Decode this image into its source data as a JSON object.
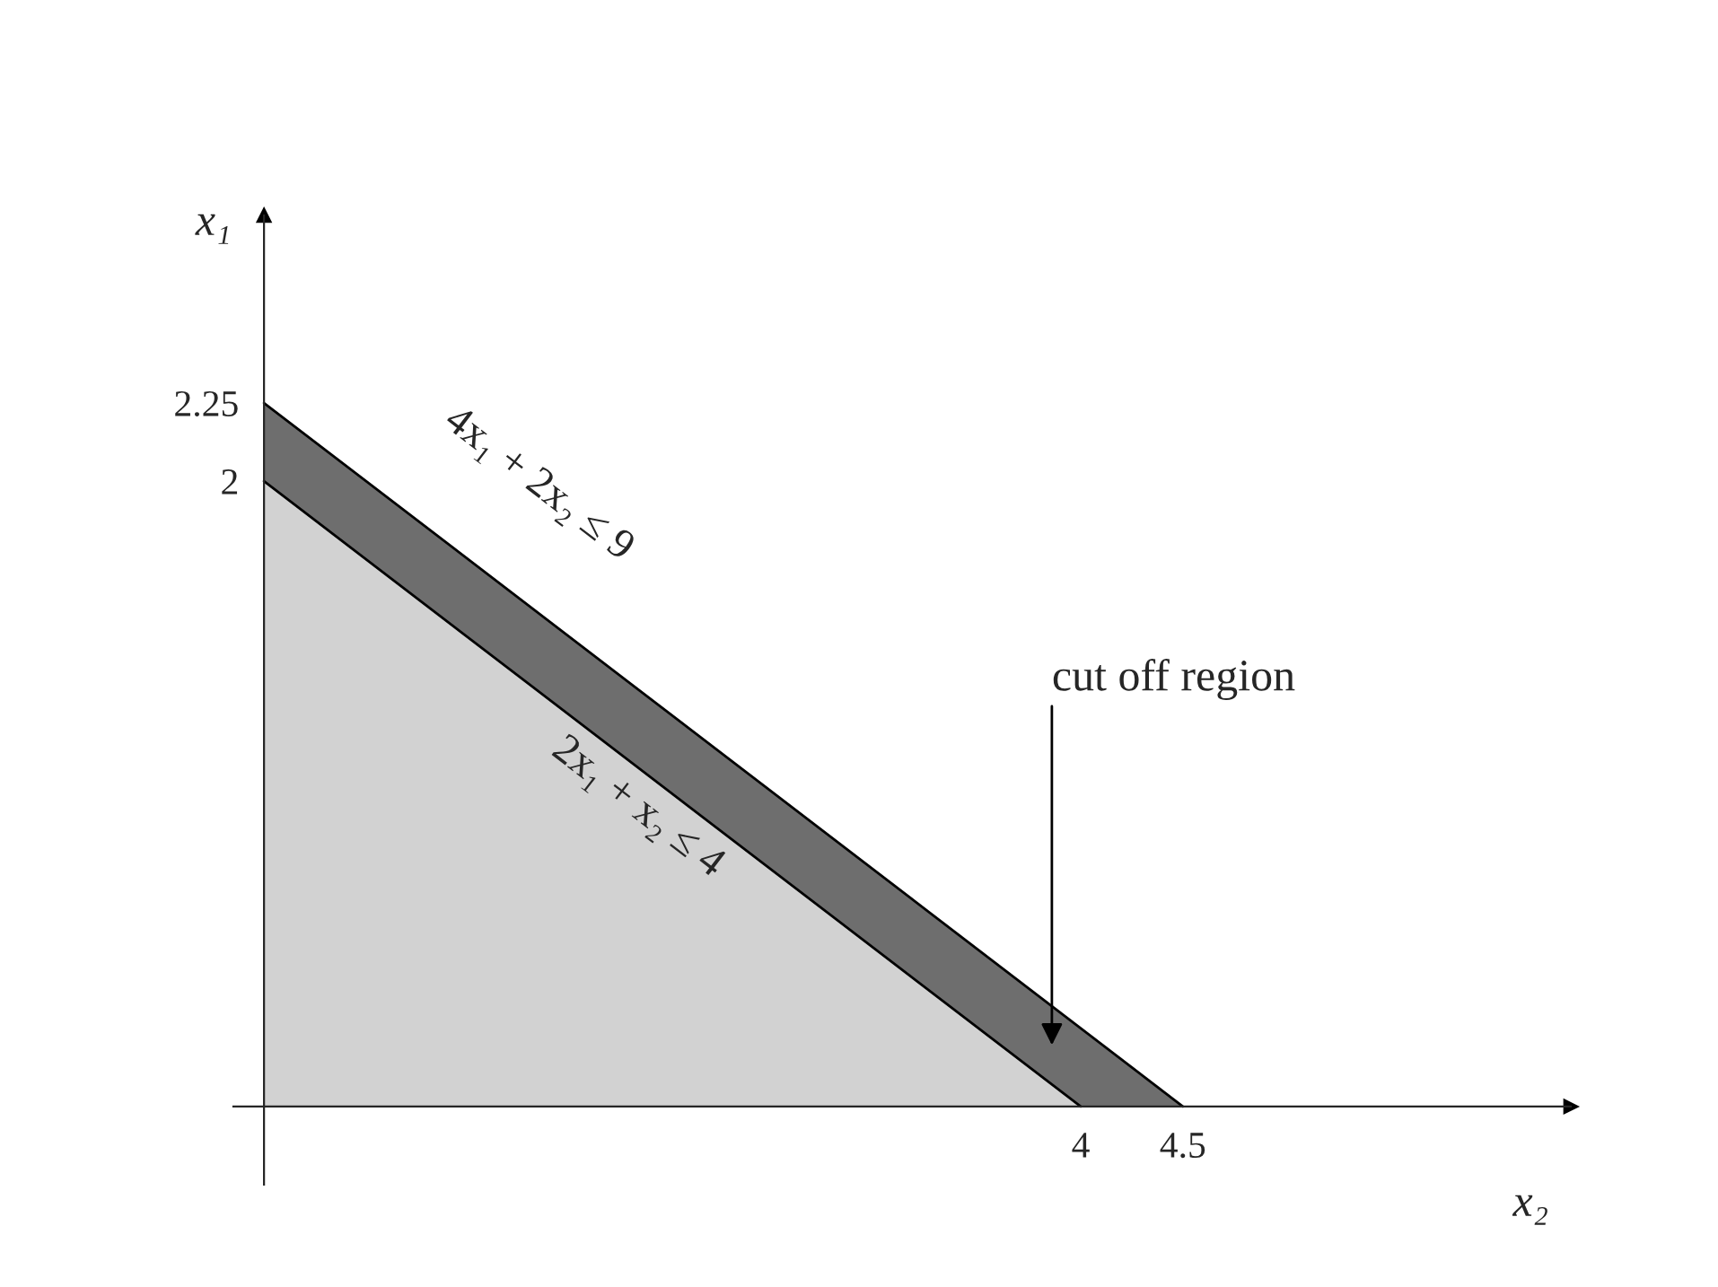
{
  "chart_data": {
    "type": "area",
    "xlabel": "x₂",
    "ylabel": "x₁",
    "series": [
      {
        "x": [
          0,
          4.5
        ],
        "values": [
          2.25,
          0
        ],
        "color": "#6e6e6e"
      },
      {
        "x": [
          0,
          4
        ],
        "values": [
          2,
          0
        ],
        "color": "#d2d2d2"
      }
    ],
    "xlim": [
      -0.15,
      6.4
    ],
    "ylim": [
      -0.25,
      2.85
    ],
    "xticks": [
      4,
      4.5
    ],
    "yticks": [
      2,
      2.25
    ],
    "grid": false,
    "legend": false,
    "annotations": [
      "4x₁ + 2x₂ ≤ 9",
      "2x₁ + x₂ ≤ 4",
      "cut off region"
    ]
  }
}
